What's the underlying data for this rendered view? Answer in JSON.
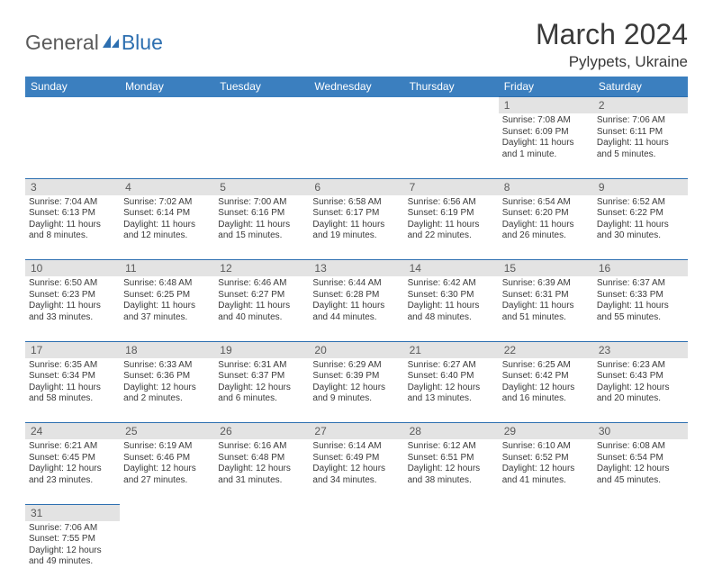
{
  "logo": {
    "text_general": "General",
    "text_blue": "Blue"
  },
  "header": {
    "month_year": "March 2024",
    "location": "Pylypets, Ukraine"
  },
  "colors": {
    "header_bg": "#3b7fbf",
    "header_text": "#ffffff",
    "daynum_bg": "#e3e3e3",
    "rule": "#2d6fb0",
    "body_text": "#3a3a3a",
    "logo_gray": "#5a5a5a",
    "logo_blue": "#2d6fb0"
  },
  "days_of_week": [
    "Sunday",
    "Monday",
    "Tuesday",
    "Wednesday",
    "Thursday",
    "Friday",
    "Saturday"
  ],
  "weeks": [
    [
      null,
      null,
      null,
      null,
      null,
      {
        "n": "1",
        "sunrise": "Sunrise: 7:08 AM",
        "sunset": "Sunset: 6:09 PM",
        "day1": "Daylight: 11 hours",
        "day2": "and 1 minute."
      },
      {
        "n": "2",
        "sunrise": "Sunrise: 7:06 AM",
        "sunset": "Sunset: 6:11 PM",
        "day1": "Daylight: 11 hours",
        "day2": "and 5 minutes."
      }
    ],
    [
      {
        "n": "3",
        "sunrise": "Sunrise: 7:04 AM",
        "sunset": "Sunset: 6:13 PM",
        "day1": "Daylight: 11 hours",
        "day2": "and 8 minutes."
      },
      {
        "n": "4",
        "sunrise": "Sunrise: 7:02 AM",
        "sunset": "Sunset: 6:14 PM",
        "day1": "Daylight: 11 hours",
        "day2": "and 12 minutes."
      },
      {
        "n": "5",
        "sunrise": "Sunrise: 7:00 AM",
        "sunset": "Sunset: 6:16 PM",
        "day1": "Daylight: 11 hours",
        "day2": "and 15 minutes."
      },
      {
        "n": "6",
        "sunrise": "Sunrise: 6:58 AM",
        "sunset": "Sunset: 6:17 PM",
        "day1": "Daylight: 11 hours",
        "day2": "and 19 minutes."
      },
      {
        "n": "7",
        "sunrise": "Sunrise: 6:56 AM",
        "sunset": "Sunset: 6:19 PM",
        "day1": "Daylight: 11 hours",
        "day2": "and 22 minutes."
      },
      {
        "n": "8",
        "sunrise": "Sunrise: 6:54 AM",
        "sunset": "Sunset: 6:20 PM",
        "day1": "Daylight: 11 hours",
        "day2": "and 26 minutes."
      },
      {
        "n": "9",
        "sunrise": "Sunrise: 6:52 AM",
        "sunset": "Sunset: 6:22 PM",
        "day1": "Daylight: 11 hours",
        "day2": "and 30 minutes."
      }
    ],
    [
      {
        "n": "10",
        "sunrise": "Sunrise: 6:50 AM",
        "sunset": "Sunset: 6:23 PM",
        "day1": "Daylight: 11 hours",
        "day2": "and 33 minutes."
      },
      {
        "n": "11",
        "sunrise": "Sunrise: 6:48 AM",
        "sunset": "Sunset: 6:25 PM",
        "day1": "Daylight: 11 hours",
        "day2": "and 37 minutes."
      },
      {
        "n": "12",
        "sunrise": "Sunrise: 6:46 AM",
        "sunset": "Sunset: 6:27 PM",
        "day1": "Daylight: 11 hours",
        "day2": "and 40 minutes."
      },
      {
        "n": "13",
        "sunrise": "Sunrise: 6:44 AM",
        "sunset": "Sunset: 6:28 PM",
        "day1": "Daylight: 11 hours",
        "day2": "and 44 minutes."
      },
      {
        "n": "14",
        "sunrise": "Sunrise: 6:42 AM",
        "sunset": "Sunset: 6:30 PM",
        "day1": "Daylight: 11 hours",
        "day2": "and 48 minutes."
      },
      {
        "n": "15",
        "sunrise": "Sunrise: 6:39 AM",
        "sunset": "Sunset: 6:31 PM",
        "day1": "Daylight: 11 hours",
        "day2": "and 51 minutes."
      },
      {
        "n": "16",
        "sunrise": "Sunrise: 6:37 AM",
        "sunset": "Sunset: 6:33 PM",
        "day1": "Daylight: 11 hours",
        "day2": "and 55 minutes."
      }
    ],
    [
      {
        "n": "17",
        "sunrise": "Sunrise: 6:35 AM",
        "sunset": "Sunset: 6:34 PM",
        "day1": "Daylight: 11 hours",
        "day2": "and 58 minutes."
      },
      {
        "n": "18",
        "sunrise": "Sunrise: 6:33 AM",
        "sunset": "Sunset: 6:36 PM",
        "day1": "Daylight: 12 hours",
        "day2": "and 2 minutes."
      },
      {
        "n": "19",
        "sunrise": "Sunrise: 6:31 AM",
        "sunset": "Sunset: 6:37 PM",
        "day1": "Daylight: 12 hours",
        "day2": "and 6 minutes."
      },
      {
        "n": "20",
        "sunrise": "Sunrise: 6:29 AM",
        "sunset": "Sunset: 6:39 PM",
        "day1": "Daylight: 12 hours",
        "day2": "and 9 minutes."
      },
      {
        "n": "21",
        "sunrise": "Sunrise: 6:27 AM",
        "sunset": "Sunset: 6:40 PM",
        "day1": "Daylight: 12 hours",
        "day2": "and 13 minutes."
      },
      {
        "n": "22",
        "sunrise": "Sunrise: 6:25 AM",
        "sunset": "Sunset: 6:42 PM",
        "day1": "Daylight: 12 hours",
        "day2": "and 16 minutes."
      },
      {
        "n": "23",
        "sunrise": "Sunrise: 6:23 AM",
        "sunset": "Sunset: 6:43 PM",
        "day1": "Daylight: 12 hours",
        "day2": "and 20 minutes."
      }
    ],
    [
      {
        "n": "24",
        "sunrise": "Sunrise: 6:21 AM",
        "sunset": "Sunset: 6:45 PM",
        "day1": "Daylight: 12 hours",
        "day2": "and 23 minutes."
      },
      {
        "n": "25",
        "sunrise": "Sunrise: 6:19 AM",
        "sunset": "Sunset: 6:46 PM",
        "day1": "Daylight: 12 hours",
        "day2": "and 27 minutes."
      },
      {
        "n": "26",
        "sunrise": "Sunrise: 6:16 AM",
        "sunset": "Sunset: 6:48 PM",
        "day1": "Daylight: 12 hours",
        "day2": "and 31 minutes."
      },
      {
        "n": "27",
        "sunrise": "Sunrise: 6:14 AM",
        "sunset": "Sunset: 6:49 PM",
        "day1": "Daylight: 12 hours",
        "day2": "and 34 minutes."
      },
      {
        "n": "28",
        "sunrise": "Sunrise: 6:12 AM",
        "sunset": "Sunset: 6:51 PM",
        "day1": "Daylight: 12 hours",
        "day2": "and 38 minutes."
      },
      {
        "n": "29",
        "sunrise": "Sunrise: 6:10 AM",
        "sunset": "Sunset: 6:52 PM",
        "day1": "Daylight: 12 hours",
        "day2": "and 41 minutes."
      },
      {
        "n": "30",
        "sunrise": "Sunrise: 6:08 AM",
        "sunset": "Sunset: 6:54 PM",
        "day1": "Daylight: 12 hours",
        "day2": "and 45 minutes."
      }
    ],
    [
      {
        "n": "31",
        "sunrise": "Sunrise: 7:06 AM",
        "sunset": "Sunset: 7:55 PM",
        "day1": "Daylight: 12 hours",
        "day2": "and 49 minutes."
      },
      null,
      null,
      null,
      null,
      null,
      null
    ]
  ]
}
